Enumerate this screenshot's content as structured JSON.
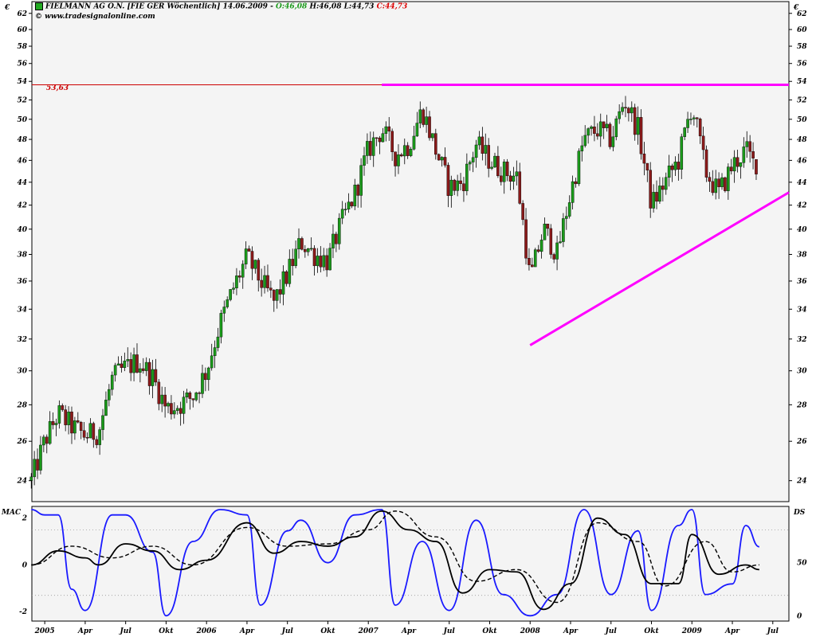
{
  "header": {
    "title": "FIELMANN AG O.N. [FIE GER  Wöchentlich] 14.06.2009 -",
    "open": "O:46,08",
    "high_low": "H:46,08 L:44,73",
    "close": "C:44,73",
    "source": "www.tradesignalonline.com"
  },
  "colors": {
    "up_candle": "#1a9a1a",
    "down_candle": "#8b1a1a",
    "resistance": "#ff00ff",
    "trendline": "#ff00ff",
    "reference_line": "#cc0000",
    "osc_blue": "#1a1aff",
    "osc_black": "#000000",
    "panel_bg": "#f4f4f4"
  },
  "chart_data": [
    {
      "type": "candlestick",
      "title": "FIELMANN AG O.N. [FIE GER  Wöchentlich] 14.06.2009",
      "currency_label": "€",
      "ylim": [
        23,
        63.5
      ],
      "y_scale": "log",
      "yticks": [
        "24",
        "26",
        "28",
        "30",
        "32",
        "34",
        "36",
        "38",
        "40",
        "42",
        "44",
        "46",
        "48",
        "50",
        "52",
        "54",
        "56",
        "58",
        "60",
        "62"
      ],
      "reference_line": {
        "value": 53.63,
        "label": "53,63"
      },
      "resistance_line": {
        "value": 53.63,
        "from": "2007-02",
        "to": "2009-07"
      },
      "support_trendline": {
        "from_date": "2008-01",
        "from_value": 31.6,
        "to_date": "2009-07",
        "to_value": 43.1
      },
      "last_candle": {
        "open": 46.08,
        "high": 46.08,
        "low": 44.73,
        "close": 44.73
      },
      "close_path": [
        {
          "date": "2004-12",
          "close": 24.0
        },
        {
          "date": "2005-01",
          "close": 26.0
        },
        {
          "date": "2005-02",
          "close": 27.5
        },
        {
          "date": "2005-03",
          "close": 26.8
        },
        {
          "date": "2005-04",
          "close": 26.3
        },
        {
          "date": "2005-05",
          "close": 26.5
        },
        {
          "date": "2005-06",
          "close": 29.5
        },
        {
          "date": "2005-07",
          "close": 30.2
        },
        {
          "date": "2005-08",
          "close": 30.6
        },
        {
          "date": "2005-09",
          "close": 29.6
        },
        {
          "date": "2005-10",
          "close": 27.8
        },
        {
          "date": "2005-11",
          "close": 28.0
        },
        {
          "date": "2005-12",
          "close": 28.5
        },
        {
          "date": "2006-01",
          "close": 30.0
        },
        {
          "date": "2006-02",
          "close": 33.0
        },
        {
          "date": "2006-03",
          "close": 35.5
        },
        {
          "date": "2006-04",
          "close": 37.8
        },
        {
          "date": "2006-05",
          "close": 36.0
        },
        {
          "date": "2006-06",
          "close": 34.5
        },
        {
          "date": "2006-07",
          "close": 36.5
        },
        {
          "date": "2006-08",
          "close": 39.0
        },
        {
          "date": "2006-09",
          "close": 38.0
        },
        {
          "date": "2006-10",
          "close": 37.5
        },
        {
          "date": "2006-11",
          "close": 40.5
        },
        {
          "date": "2006-12",
          "close": 43.0
        },
        {
          "date": "2007-01",
          "close": 47.0
        },
        {
          "date": "2007-02",
          "close": 49.0
        },
        {
          "date": "2007-03",
          "close": 46.5
        },
        {
          "date": "2007-04",
          "close": 47.5
        },
        {
          "date": "2007-05",
          "close": 51.0
        },
        {
          "date": "2007-06",
          "close": 47.0
        },
        {
          "date": "2007-07",
          "close": 43.5
        },
        {
          "date": "2007-08",
          "close": 44.0
        },
        {
          "date": "2007-09",
          "close": 47.5
        },
        {
          "date": "2007-10",
          "close": 46.0
        },
        {
          "date": "2007-11",
          "close": 45.0
        },
        {
          "date": "2007-12",
          "close": 44.5
        },
        {
          "date": "2008-01",
          "close": 36.0
        },
        {
          "date": "2008-02",
          "close": 40.0
        },
        {
          "date": "2008-03",
          "close": 38.0
        },
        {
          "date": "2008-04",
          "close": 43.0
        },
        {
          "date": "2008-05",
          "close": 48.0
        },
        {
          "date": "2008-06",
          "close": 49.0
        },
        {
          "date": "2008-07",
          "close": 48.0
        },
        {
          "date": "2008-08",
          "close": 52.0
        },
        {
          "date": "2008-09",
          "close": 49.0
        },
        {
          "date": "2008-10",
          "close": 42.0
        },
        {
          "date": "2008-11",
          "close": 44.0
        },
        {
          "date": "2008-12",
          "close": 46.0
        },
        {
          "date": "2009-01",
          "close": 51.5
        },
        {
          "date": "2009-02",
          "close": 45.0
        },
        {
          "date": "2009-03",
          "close": 43.0
        },
        {
          "date": "2009-04",
          "close": 45.5
        },
        {
          "date": "2009-05",
          "close": 47.0
        },
        {
          "date": "2009-06",
          "close": 44.73
        }
      ]
    },
    {
      "type": "line",
      "title": "MAC",
      "ylim": [
        -2.4,
        2.5
      ],
      "yticks": [
        "2",
        "0",
        "-2"
      ],
      "guides": [
        1.5,
        -1.3
      ],
      "series": [
        {
          "color": "#000000",
          "style": "solid",
          "points": [
            {
              "date": "2004-12",
              "value": 0.0
            },
            {
              "date": "2005-02",
              "value": 0.6
            },
            {
              "date": "2005-04",
              "value": 0.3
            },
            {
              "date": "2005-05",
              "value": 0.0
            },
            {
              "date": "2005-07",
              "value": 0.9
            },
            {
              "date": "2005-09",
              "value": 0.6
            },
            {
              "date": "2005-11",
              "value": -0.2
            },
            {
              "date": "2006-01",
              "value": 0.2
            },
            {
              "date": "2006-04",
              "value": 1.8
            },
            {
              "date": "2006-06",
              "value": 0.5
            },
            {
              "date": "2006-08",
              "value": 1.0
            },
            {
              "date": "2006-10",
              "value": 0.8
            },
            {
              "date": "2006-12",
              "value": 1.2
            },
            {
              "date": "2007-02",
              "value": 2.3
            },
            {
              "date": "2007-04",
              "value": 1.5
            },
            {
              "date": "2007-06",
              "value": 1.0
            },
            {
              "date": "2007-08",
              "value": -1.2
            },
            {
              "date": "2007-10",
              "value": -0.2
            },
            {
              "date": "2007-12",
              "value": -0.3
            },
            {
              "date": "2008-02",
              "value": -1.9
            },
            {
              "date": "2008-04",
              "value": -0.8
            },
            {
              "date": "2008-06",
              "value": 2.0
            },
            {
              "date": "2008-08",
              "value": 1.3
            },
            {
              "date": "2008-10",
              "value": -0.8
            },
            {
              "date": "2008-12",
              "value": -0.8
            },
            {
              "date": "2009-01",
              "value": 1.3
            },
            {
              "date": "2009-03",
              "value": -0.4
            },
            {
              "date": "2009-05",
              "value": 0.0
            },
            {
              "date": "2009-06",
              "value": -0.2
            }
          ]
        },
        {
          "color": "#000000",
          "style": "dashed",
          "points": [
            {
              "date": "2004-12",
              "value": 0.0
            },
            {
              "date": "2005-03",
              "value": 0.8
            },
            {
              "date": "2005-06",
              "value": 0.3
            },
            {
              "date": "2005-09",
              "value": 0.8
            },
            {
              "date": "2005-12",
              "value": 0.0
            },
            {
              "date": "2006-04",
              "value": 1.6
            },
            {
              "date": "2006-07",
              "value": 0.8
            },
            {
              "date": "2006-10",
              "value": 0.9
            },
            {
              "date": "2007-01",
              "value": 1.5
            },
            {
              "date": "2007-03",
              "value": 2.3
            },
            {
              "date": "2007-06",
              "value": 1.2
            },
            {
              "date": "2007-09",
              "value": -0.7
            },
            {
              "date": "2007-12",
              "value": -0.2
            },
            {
              "date": "2008-03",
              "value": -1.6
            },
            {
              "date": "2008-06",
              "value": 1.8
            },
            {
              "date": "2008-09",
              "value": 1.0
            },
            {
              "date": "2008-11",
              "value": -0.9
            },
            {
              "date": "2009-02",
              "value": 1.0
            },
            {
              "date": "2009-04",
              "value": -0.3
            },
            {
              "date": "2009-06",
              "value": 0.0
            }
          ]
        }
      ]
    },
    {
      "type": "line",
      "title": "DS",
      "ylim": [
        -5,
        103
      ],
      "yticks": [
        "50",
        "0"
      ],
      "guides": [
        80,
        20
      ],
      "series": [
        {
          "color": "#1a1aff",
          "style": "solid",
          "points": [
            {
              "date": "2004-12",
              "value": 100
            },
            {
              "date": "2005-01",
              "value": 95
            },
            {
              "date": "2005-02",
              "value": 95
            },
            {
              "date": "2005-03",
              "value": 25
            },
            {
              "date": "2005-04",
              "value": 5
            },
            {
              "date": "2005-06",
              "value": 95
            },
            {
              "date": "2005-07",
              "value": 95
            },
            {
              "date": "2005-09",
              "value": 60
            },
            {
              "date": "2005-10",
              "value": 0
            },
            {
              "date": "2005-12",
              "value": 70
            },
            {
              "date": "2006-02",
              "value": 100
            },
            {
              "date": "2006-04",
              "value": 95
            },
            {
              "date": "2006-05",
              "value": 10
            },
            {
              "date": "2006-07",
              "value": 80
            },
            {
              "date": "2006-08",
              "value": 90
            },
            {
              "date": "2006-10",
              "value": 50
            },
            {
              "date": "2006-12",
              "value": 95
            },
            {
              "date": "2007-02",
              "value": 100
            },
            {
              "date": "2007-03",
              "value": 10
            },
            {
              "date": "2007-05",
              "value": 70
            },
            {
              "date": "2007-07",
              "value": 5
            },
            {
              "date": "2007-09",
              "value": 90
            },
            {
              "date": "2007-11",
              "value": 20
            },
            {
              "date": "2008-01",
              "value": 0
            },
            {
              "date": "2008-03",
              "value": 20
            },
            {
              "date": "2008-05",
              "value": 100
            },
            {
              "date": "2008-07",
              "value": 20
            },
            {
              "date": "2008-09",
              "value": 80
            },
            {
              "date": "2008-10",
              "value": 5
            },
            {
              "date": "2008-12",
              "value": 85
            },
            {
              "date": "2009-01",
              "value": 100
            },
            {
              "date": "2009-02",
              "value": 20
            },
            {
              "date": "2009-04",
              "value": 30
            },
            {
              "date": "2009-05",
              "value": 85
            },
            {
              "date": "2009-06",
              "value": 65
            }
          ]
        }
      ]
    }
  ],
  "x_axis": {
    "ticks": [
      {
        "date": "2005-01",
        "label": "2005"
      },
      {
        "date": "2005-04",
        "label": "Apr"
      },
      {
        "date": "2005-07",
        "label": "Jul"
      },
      {
        "date": "2005-10",
        "label": "Okt"
      },
      {
        "date": "2006-01",
        "label": "2006"
      },
      {
        "date": "2006-04",
        "label": "Apr"
      },
      {
        "date": "2006-07",
        "label": "Jul"
      },
      {
        "date": "2006-10",
        "label": "Okt"
      },
      {
        "date": "2007-01",
        "label": "2007"
      },
      {
        "date": "2007-04",
        "label": "Apr"
      },
      {
        "date": "2007-07",
        "label": "Jul"
      },
      {
        "date": "2007-10",
        "label": "Okt"
      },
      {
        "date": "2008-01",
        "label": "2008"
      },
      {
        "date": "2008-04",
        "label": "Apr"
      },
      {
        "date": "2008-07",
        "label": "Jul"
      },
      {
        "date": "2008-10",
        "label": "Okt"
      },
      {
        "date": "2009-01",
        "label": "2009"
      },
      {
        "date": "2009-04",
        "label": "Apr"
      },
      {
        "date": "2009-07",
        "label": "Jul"
      }
    ]
  }
}
